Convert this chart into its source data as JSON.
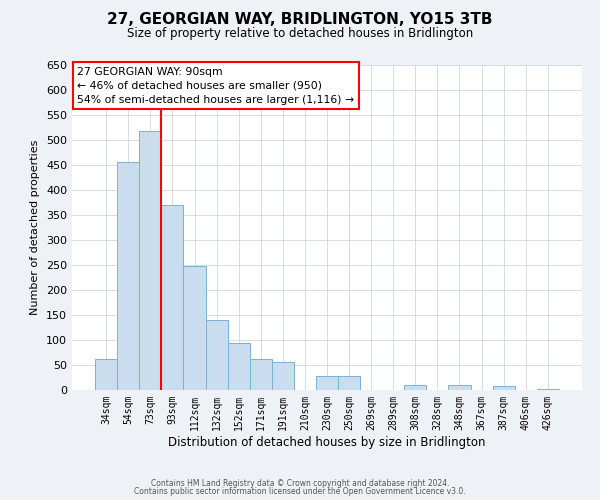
{
  "title": "27, GEORGIAN WAY, BRIDLINGTON, YO15 3TB",
  "subtitle": "Size of property relative to detached houses in Bridlington",
  "xlabel": "Distribution of detached houses by size in Bridlington",
  "ylabel": "Number of detached properties",
  "bar_labels": [
    "34sqm",
    "54sqm",
    "73sqm",
    "93sqm",
    "112sqm",
    "132sqm",
    "152sqm",
    "171sqm",
    "191sqm",
    "210sqm",
    "230sqm",
    "250sqm",
    "269sqm",
    "289sqm",
    "308sqm",
    "328sqm",
    "348sqm",
    "367sqm",
    "387sqm",
    "406sqm",
    "426sqm"
  ],
  "bar_values": [
    63,
    457,
    519,
    370,
    248,
    140,
    95,
    62,
    57,
    0,
    28,
    28,
    0,
    0,
    10,
    0,
    10,
    0,
    8,
    0,
    3
  ],
  "bar_color": "#c9ddef",
  "bar_edge_color": "#7ab3d4",
  "ylim": [
    0,
    650
  ],
  "yticks": [
    0,
    50,
    100,
    150,
    200,
    250,
    300,
    350,
    400,
    450,
    500,
    550,
    600,
    650
  ],
  "property_line_color": "red",
  "property_line_x": 2.5,
  "annotation_title": "27 GEORGIAN WAY: 90sqm",
  "annotation_line1": "← 46% of detached houses are smaller (950)",
  "annotation_line2": "54% of semi-detached houses are larger (1,116) →",
  "footer1": "Contains HM Land Registry data © Crown copyright and database right 2024.",
  "footer2": "Contains public sector information licensed under the Open Government Licence v3.0.",
  "background_color": "#eef2f7",
  "plot_bg_color": "#ffffff",
  "grid_color": "#c0d0e0"
}
